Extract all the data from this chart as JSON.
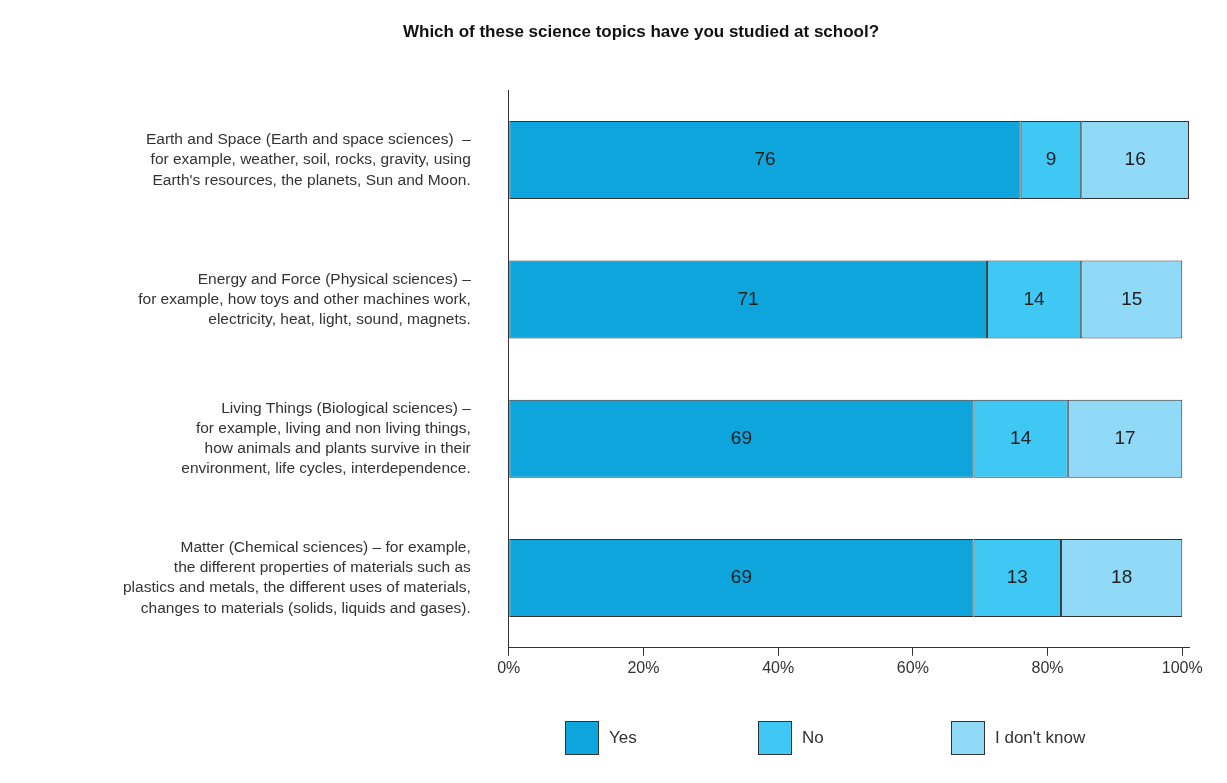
{
  "chart_data": {
    "type": "bar",
    "orientation": "horizontal",
    "stacked": true,
    "title": "Which of these science topics have you studied at school?",
    "categories": [
      "Earth and Space (Earth and space sciences)  –\nfor example, weather, soil, rocks, gravity, using\nEarth's resources, the planets, Sun and Moon.",
      "Energy and Force (Physical sciences) –\nfor example, how toys and other machines work,\nelectricity, heat, light, sound, magnets.",
      "Living Things (Biological sciences) –\nfor example, living and non living things,\nhow animals and plants survive in their\nenvironment, life cycles, interdependence.",
      "Matter (Chemical sciences) – for example,\nthe different properties of materials such as\nplastics and metals, the different uses of materials,\nchanges to materials (solids, liquids and gases)."
    ],
    "series": [
      {
        "name": "Yes",
        "color": "#0ea5dc",
        "values": [
          76,
          71,
          69,
          69
        ]
      },
      {
        "name": "No",
        "color": "#40c8f4",
        "values": [
          9,
          14,
          14,
          13
        ]
      },
      {
        "name": "I don't know",
        "color": "#90d9f7",
        "values": [
          16,
          15,
          17,
          18
        ]
      }
    ],
    "xlim": [
      0,
      101
    ],
    "xticks": [
      {
        "value": 0,
        "label": "0%"
      },
      {
        "value": 20,
        "label": "20%"
      },
      {
        "value": 40,
        "label": "40%"
      },
      {
        "value": 60,
        "label": "60%"
      },
      {
        "value": 80,
        "label": "80%"
      },
      {
        "value": 100,
        "label": "100%"
      }
    ],
    "data_labels": true,
    "legend": "bottom"
  }
}
